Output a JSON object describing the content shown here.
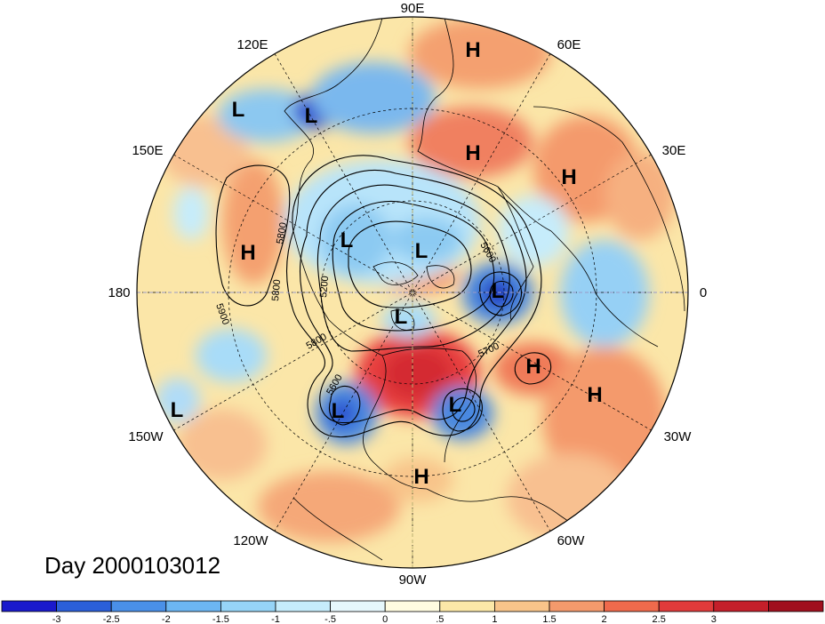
{
  "map": {
    "projection": "north-polar-stereographic",
    "date_label": "Day 2000103012",
    "longitude_labels": [
      {
        "text": "90E",
        "name": "lon-90e"
      },
      {
        "text": "60E",
        "name": "lon-60e"
      },
      {
        "text": "120E",
        "name": "lon-120e"
      },
      {
        "text": "30E",
        "name": "lon-30e"
      },
      {
        "text": "150E",
        "name": "lon-150e"
      },
      {
        "text": "180",
        "name": "lon-180"
      },
      {
        "text": "0",
        "name": "lon-0"
      },
      {
        "text": "150W",
        "name": "lon-150w"
      },
      {
        "text": "30W",
        "name": "lon-30w"
      },
      {
        "text": "120W",
        "name": "lon-120w"
      },
      {
        "text": "60W",
        "name": "lon-60w"
      },
      {
        "text": "90W",
        "name": "lon-90w"
      }
    ],
    "pressure_centers": [
      {
        "type": "H",
        "name": "high-ural"
      },
      {
        "type": "L",
        "name": "low-west-pacific"
      },
      {
        "type": "L",
        "name": "low-east-asia"
      },
      {
        "type": "H",
        "name": "high-west-russia"
      },
      {
        "type": "H",
        "name": "high-east-europe"
      },
      {
        "type": "H",
        "name": "high-north-pacific"
      },
      {
        "type": "L",
        "name": "low-east-siberia"
      },
      {
        "type": "L",
        "name": "low-arctic-siberia"
      },
      {
        "type": "L",
        "name": "low-scandinavia"
      },
      {
        "type": "L",
        "name": "low-canadian-arctic"
      },
      {
        "type": "H",
        "name": "high-mid-atlantic"
      },
      {
        "type": "H",
        "name": "high-east-atlantic"
      },
      {
        "type": "L",
        "name": "low-northeast-pacific"
      },
      {
        "type": "L",
        "name": "low-west-canada"
      },
      {
        "type": "L",
        "name": "low-eastern-usa"
      },
      {
        "type": "H",
        "name": "high-caribbean"
      }
    ],
    "contour_labels": [
      "5800",
      "5600",
      "5900",
      "5800",
      "5200",
      "5800",
      "5700",
      "5600"
    ]
  },
  "colorbar": {
    "colors": [
      "#1a1acc",
      "#2b5fd9",
      "#4a90e8",
      "#6cb6f2",
      "#96d4f7",
      "#c6ecfb",
      "#e6f7fc",
      "#fffbe0",
      "#fce8a8",
      "#f8c48a",
      "#f49a6c",
      "#ef6a4c",
      "#e03a3a",
      "#c41f2a",
      "#a00f1e"
    ],
    "tick_labels": [
      "-3",
      "-2.5",
      "-2",
      "-1.5",
      "-1",
      "-.5",
      "0",
      ".5",
      "1",
      "1.5",
      "2",
      "2.5",
      "3"
    ]
  }
}
